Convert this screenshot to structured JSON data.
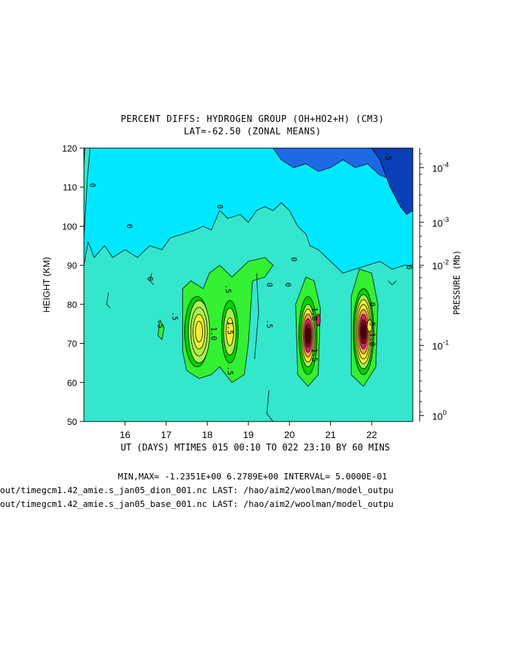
{
  "chart_data": {
    "type": "heatmap",
    "title": "PERCENT DIFFS: HYDROGEN GROUP (OH+HO2+H) (CM3)",
    "subtitle": "LAT=-62.50 (ZONAL MEANS)",
    "xlabel": "UT (DAYS) MTIMES 015 00:10 TO 022 23:10 BY   60 MINS",
    "ylabel": "HEIGHT (KM)",
    "y2label": "PRESSURE (Mb)",
    "xlim": [
      15.0,
      23.0
    ],
    "ylim": [
      50,
      120
    ],
    "x_ticks": [
      16,
      17,
      18,
      19,
      20,
      21,
      22
    ],
    "y_ticks": [
      50,
      60,
      70,
      80,
      90,
      100,
      110,
      120
    ],
    "y2_ticks": [
      {
        "mant": "10",
        "exp": "-4",
        "height": 115
      },
      {
        "mant": "10",
        "exp": "-3",
        "height": 101
      },
      {
        "mant": "10",
        "exp": "-2",
        "height": 90
      },
      {
        "mant": "10",
        "exp": "-1",
        "height": 69.5
      },
      {
        "mant": "10",
        "exp": "0",
        "height": 51.5
      }
    ],
    "contour_interval": 0.5,
    "min": -1.2351,
    "max": 6.2789,
    "peaks": [
      {
        "day": 17.75,
        "height": 73,
        "value": 3.5
      },
      {
        "day": 18.55,
        "height": 73,
        "value": 2.0
      },
      {
        "day": 20.5,
        "height": 72,
        "value": 5.5
      },
      {
        "day": 21.8,
        "height": 73,
        "value": 6.2789
      }
    ],
    "contour_labels": [
      {
        "text": "0",
        "day": 15.2,
        "height": 110.5
      },
      {
        "text": "0",
        "day": 16.1,
        "height": 100
      },
      {
        "text": "0",
        "day": 16.6,
        "height": 86.5
      },
      {
        "text": ".5",
        "day": 16.85,
        "height": 75
      },
      {
        "text": ".5",
        "day": 17.2,
        "height": 77
      },
      {
        "text": "1.0",
        "day": 18.15,
        "height": 72.5
      },
      {
        "text": ".5",
        "day": 18.5,
        "height": 84
      },
      {
        "text": "1.5",
        "day": 18.55,
        "height": 74
      },
      {
        "text": ".5",
        "day": 18.55,
        "height": 63
      },
      {
        "text": "0",
        "day": 19.5,
        "height": 85
      },
      {
        "text": ".5",
        "day": 19.5,
        "height": 75
      },
      {
        "text": "0",
        "day": 19.95,
        "height": 85
      },
      {
        "text": "0",
        "day": 20.1,
        "height": 91.5
      },
      {
        "text": "1.0",
        "day": 20.6,
        "height": 77.5
      },
      {
        "text": "1.5",
        "day": 20.6,
        "height": 67
      },
      {
        "text": "0",
        "day": 22.0,
        "height": 80
      },
      {
        "text": "1.0",
        "day": 22.0,
        "height": 71
      },
      {
        "text": ".5",
        "day": 22.0,
        "height": 75.5
      },
      {
        "text": "0",
        "day": 22.9,
        "height": 89.5
      },
      {
        "text": "0",
        "day": 18.3,
        "height": 105
      },
      {
        "text": ".5",
        "day": 22.4,
        "height": 118
      }
    ],
    "colors": {
      "level_neg_3": "#0a3fb8",
      "level_neg_2": "#1e6ae6",
      "level_neg_1": "#00e8ff",
      "level_0": "#33e6cc",
      "level_1": "#33f033",
      "level_2": "#00d200",
      "level_3": "#a8f050",
      "level_4": "#f0f030",
      "level_5": "#ff9a5a",
      "level_6": "#e02060",
      "level_7": "#900020",
      "level_8": "#500000"
    }
  },
  "footer": {
    "stats": "MIN,MAX= -1.2351E+00  6.2789E+00 INTERVAL=  5.0000E-01",
    "file1": "out/timegcm1.42_amie.s_jan05_dion_001.nc LAST: /hao/aim2/woolman/model_outpu",
    "file2": "out/timegcm1.42_amie.s_jan05_base_001.nc LAST: /hao/aim2/woolman/model_outpu"
  }
}
